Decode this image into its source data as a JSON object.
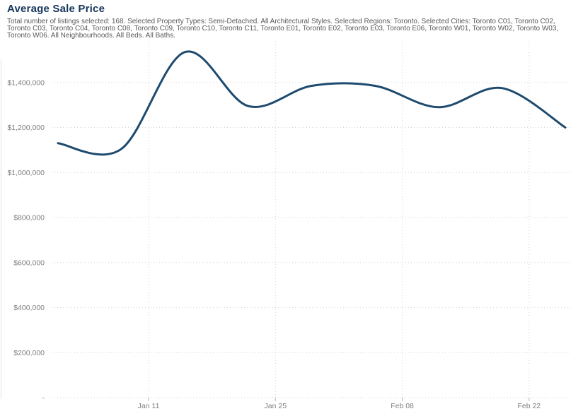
{
  "header": {
    "title": "Average Sale Price",
    "subtitle": "Total number of listings selected: 168. Selected Property Types: Semi-Detached. All Architectural Styles. Selected Regions: Toronto. Selected Cities: Toronto C01, Toronto C02, Toronto C03, Toronto C04, Toronto C08, Toronto C09, Toronto C10, Toronto C11, Toronto E01, Toronto E02, Toronto E03, Toronto E06, Toronto W01, Toronto W02, Toronto W03, Toronto W06. All Neighbourhoods. All Beds. All Baths."
  },
  "colors": {
    "title": "#17365d",
    "subtitle": "#595959",
    "axis_label": "#7f7f7f",
    "gridline": "#d4d4d4",
    "tick": "#b8b8b8",
    "line": "#1d4a6e"
  },
  "chart_data": {
    "type": "line",
    "title": "Average Sale Price",
    "x": [
      "Jan 01",
      "Jan 08",
      "Jan 15",
      "Jan 22",
      "Jan 29",
      "Feb 05",
      "Feb 12",
      "Feb 19",
      "Feb 26"
    ],
    "x_days": [
      0,
      7,
      14,
      21,
      28,
      35,
      42,
      49,
      56
    ],
    "series": [
      {
        "name": "Average Sale Price",
        "values": [
          1130000,
          1105000,
          1535000,
          1295000,
          1385000,
          1385000,
          1290000,
          1375000,
          1200000
        ]
      }
    ],
    "x_ticks": [
      {
        "label": "Jan 11",
        "day": 10
      },
      {
        "label": "Jan 25",
        "day": 24
      },
      {
        "label": "Feb 08",
        "day": 38
      },
      {
        "label": "Feb 22",
        "day": 52
      }
    ],
    "y_ticks": [
      {
        "value": 1400000,
        "label": "$1,400,000"
      },
      {
        "value": 1200000,
        "label": "$1,200,000"
      },
      {
        "value": 1000000,
        "label": "$1,000,000"
      },
      {
        "value": 800000,
        "label": "$800,000"
      },
      {
        "value": 600000,
        "label": "$600,000"
      },
      {
        "value": 400000,
        "label": "$400,000"
      },
      {
        "value": 200000,
        "label": "$200,000"
      },
      {
        "value": 0,
        "label": "-"
      }
    ],
    "ylim": [
      0,
      1560000
    ],
    "xlabel": "",
    "ylabel": "",
    "grid": "dotted",
    "legend": "none",
    "smooth": true
  }
}
